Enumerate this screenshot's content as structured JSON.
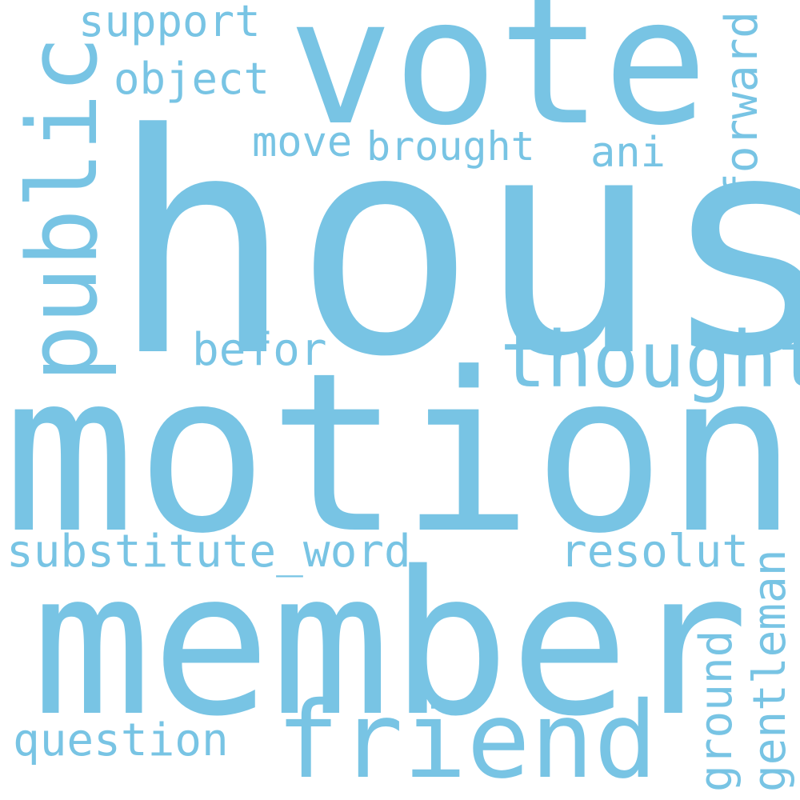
{
  "wordcloud": {
    "color": "#78c4e4",
    "background": "#ffffff",
    "words": {
      "hous": "hous",
      "motion": "motion",
      "member": "member",
      "vote": "vote",
      "friend": "friend",
      "thought": "thought",
      "public": "public",
      "substitute_word": "substitute_word",
      "resolut": "resolut",
      "question": "question",
      "befor": "befor",
      "support": "support",
      "object": "object",
      "move": "move",
      "brought": "brought",
      "ani": "ani",
      "forward": "forward",
      "gentleman": "gentleman",
      "ground": "ground"
    }
  }
}
